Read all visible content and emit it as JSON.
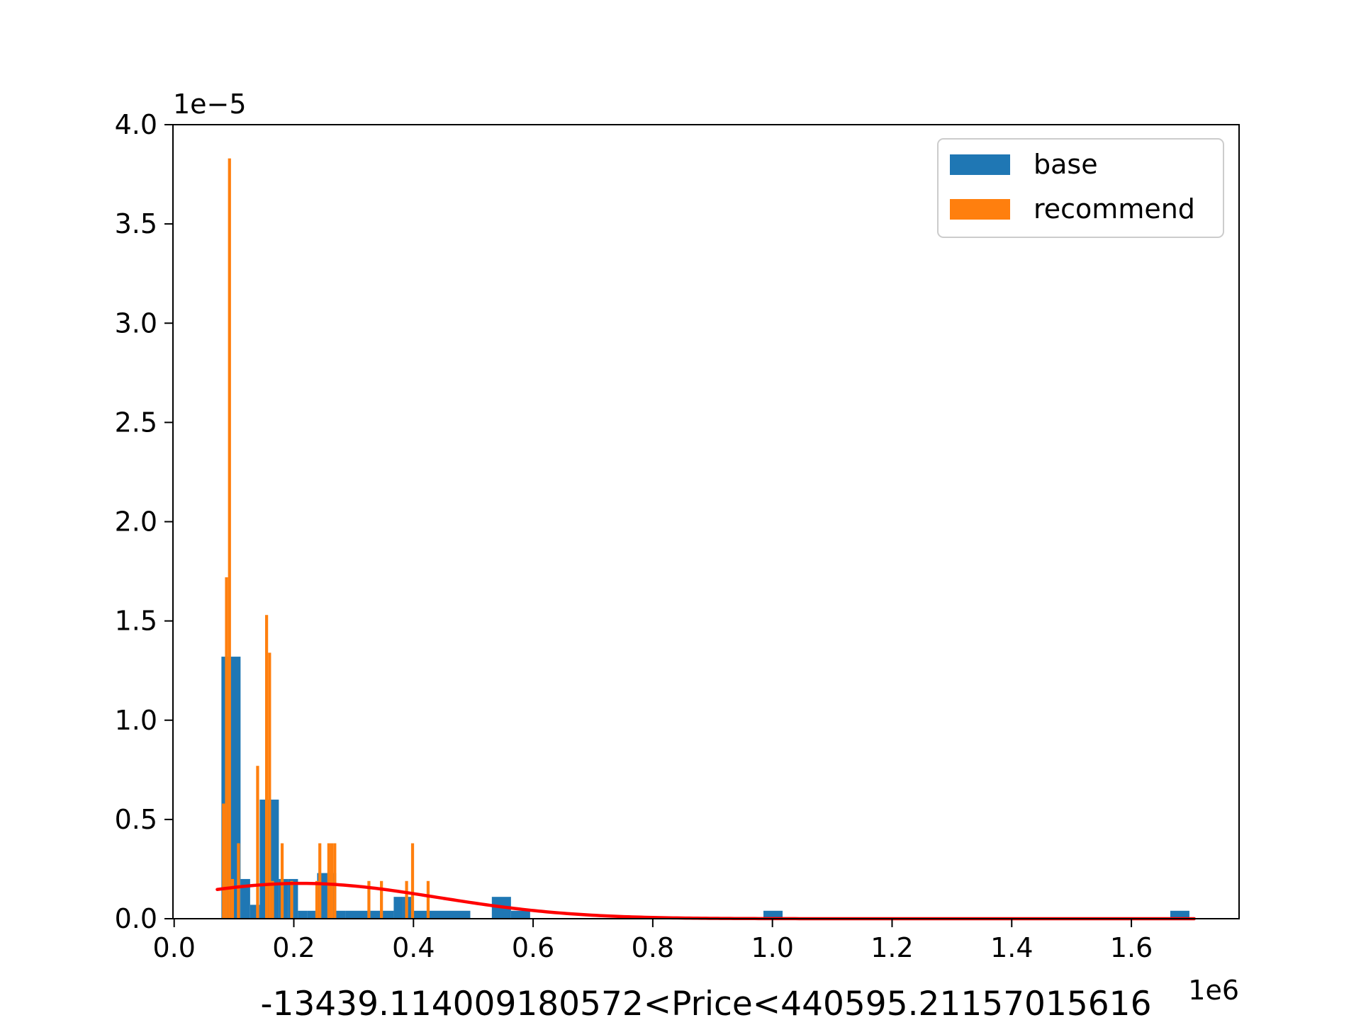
{
  "chart_data": {
    "type": "bar",
    "title": "",
    "xlabel": "-13439.114009180572<Price<440595.21157015616",
    "ylabel": "",
    "x_offset_text": "1e6",
    "y_offset_text": "1e−5",
    "xlim": [
      -0.002,
      1.78
    ],
    "ylim": [
      0,
      4.0
    ],
    "x_ticks": [
      0.0,
      0.2,
      0.4,
      0.6,
      0.8,
      1.0,
      1.2,
      1.4,
      1.6
    ],
    "x_tick_labels": [
      "0.0",
      "0.2",
      "0.4",
      "0.6",
      "0.8",
      "1.0",
      "1.2",
      "1.4",
      "1.6"
    ],
    "y_ticks": [
      0.0,
      0.5,
      1.0,
      1.5,
      2.0,
      2.5,
      3.0,
      3.5,
      4.0
    ],
    "y_tick_labels": [
      "0.0",
      "0.5",
      "1.0",
      "1.5",
      "2.0",
      "2.5",
      "3.0",
      "3.5",
      "4.0"
    ],
    "legend": {
      "position": "upper right",
      "entries": [
        "base",
        "recommend"
      ]
    },
    "series": [
      {
        "name": "base",
        "color": "#1f77b4",
        "bins": [
          {
            "x0": 0.079,
            "x1": 0.111,
            "y": 1.32
          },
          {
            "x0": 0.111,
            "x1": 0.127,
            "y": 0.2
          },
          {
            "x0": 0.127,
            "x1": 0.143,
            "y": 0.07
          },
          {
            "x0": 0.143,
            "x1": 0.159,
            "y": 0.6
          },
          {
            "x0": 0.159,
            "x1": 0.175,
            "y": 0.6
          },
          {
            "x0": 0.175,
            "x1": 0.191,
            "y": 0.2
          },
          {
            "x0": 0.191,
            "x1": 0.207,
            "y": 0.2
          },
          {
            "x0": 0.207,
            "x1": 0.223,
            "y": 0.04
          },
          {
            "x0": 0.223,
            "x1": 0.239,
            "y": 0.04
          },
          {
            "x0": 0.239,
            "x1": 0.271,
            "y": 0.23
          },
          {
            "x0": 0.271,
            "x1": 0.287,
            "y": 0.04
          },
          {
            "x0": 0.287,
            "x1": 0.367,
            "y": 0.04
          },
          {
            "x0": 0.367,
            "x1": 0.383,
            "y": 0.11
          },
          {
            "x0": 0.383,
            "x1": 0.399,
            "y": 0.11
          },
          {
            "x0": 0.399,
            "x1": 0.495,
            "y": 0.04
          },
          {
            "x0": 0.531,
            "x1": 0.563,
            "y": 0.11
          },
          {
            "x0": 0.563,
            "x1": 0.595,
            "y": 0.04
          },
          {
            "x0": 0.985,
            "x1": 1.017,
            "y": 0.04
          },
          {
            "x0": 1.665,
            "x1": 1.697,
            "y": 0.04
          }
        ]
      },
      {
        "name": "recommend",
        "color": "#ff7f0e",
        "bins": [
          {
            "x0": 0.08,
            "x1": 0.085,
            "y": 0.58
          },
          {
            "x0": 0.085,
            "x1": 0.09,
            "y": 1.72
          },
          {
            "x0": 0.09,
            "x1": 0.095,
            "y": 3.83
          },
          {
            "x0": 0.095,
            "x1": 0.1,
            "y": 0.2
          },
          {
            "x0": 0.105,
            "x1": 0.11,
            "y": 0.38
          },
          {
            "x0": 0.137,
            "x1": 0.142,
            "y": 0.77
          },
          {
            "x0": 0.152,
            "x1": 0.157,
            "y": 1.53
          },
          {
            "x0": 0.157,
            "x1": 0.162,
            "y": 1.34
          },
          {
            "x0": 0.162,
            "x1": 0.167,
            "y": 0.19
          },
          {
            "x0": 0.178,
            "x1": 0.183,
            "y": 0.38
          },
          {
            "x0": 0.194,
            "x1": 0.199,
            "y": 0.19
          },
          {
            "x0": 0.236,
            "x1": 0.241,
            "y": 0.19
          },
          {
            "x0": 0.241,
            "x1": 0.246,
            "y": 0.38
          },
          {
            "x0": 0.256,
            "x1": 0.261,
            "y": 0.38
          },
          {
            "x0": 0.261,
            "x1": 0.266,
            "y": 0.38
          },
          {
            "x0": 0.266,
            "x1": 0.271,
            "y": 0.38
          },
          {
            "x0": 0.323,
            "x1": 0.328,
            "y": 0.19
          },
          {
            "x0": 0.344,
            "x1": 0.349,
            "y": 0.19
          },
          {
            "x0": 0.386,
            "x1": 0.391,
            "y": 0.19
          },
          {
            "x0": 0.396,
            "x1": 0.401,
            "y": 0.38
          },
          {
            "x0": 0.422,
            "x1": 0.427,
            "y": 0.19
          }
        ]
      }
    ],
    "curve": {
      "color": "#ff0000",
      "type": "gaussian",
      "mean": 0.212,
      "sd": 0.227,
      "x_start": 0.072,
      "x_end": 1.705,
      "peak": 0.178
    }
  }
}
